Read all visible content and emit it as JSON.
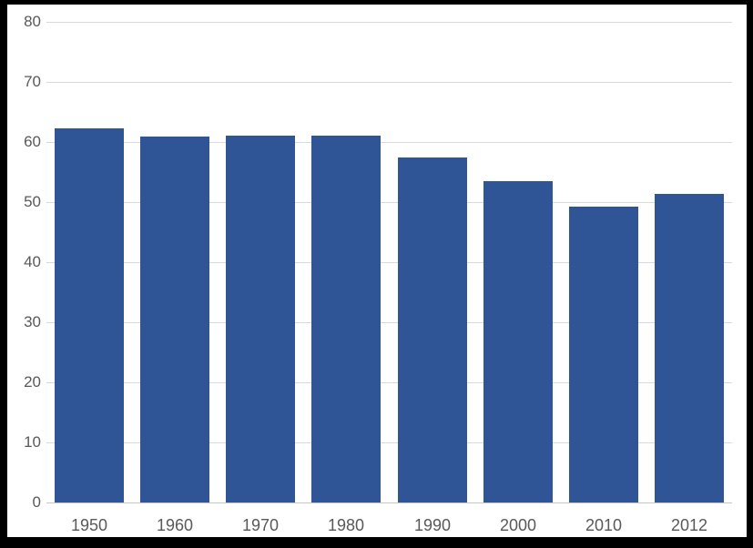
{
  "chart_data": {
    "type": "bar",
    "title": "",
    "xlabel": "",
    "ylabel": "",
    "categories": [
      "1950",
      "1960",
      "1970",
      "1980",
      "1990",
      "2000",
      "2010",
      "2012"
    ],
    "values": [
      62.3,
      60.8,
      61.0,
      61.0,
      57.4,
      53.5,
      49.2,
      51.4
    ],
    "ylim": [
      0,
      80
    ],
    "yticks": [
      0,
      10,
      20,
      30,
      40,
      50,
      60,
      70,
      80
    ],
    "grid": true,
    "legend": false,
    "bar_color": "#2f5597",
    "gridline_color": "#d9d9d9",
    "axis_line_color": "#c6c6c6",
    "tick_label_color": "#595959",
    "plot_background_color": "#ffffff",
    "frame_color": "#000000"
  }
}
